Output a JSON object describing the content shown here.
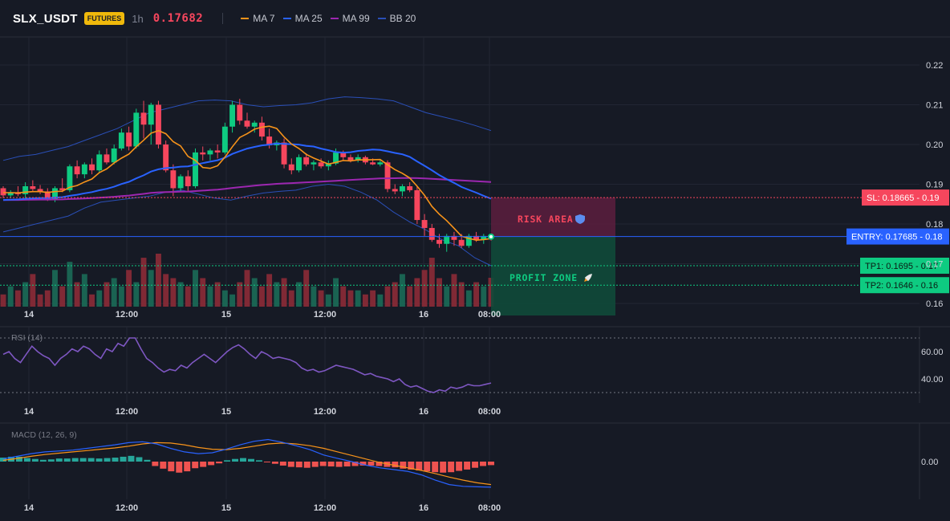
{
  "header": {
    "symbol": "SLX_USDT",
    "badge": "FUTURES",
    "timeframe": "1h",
    "price": "0.17682"
  },
  "legend": [
    {
      "label": "MA 7",
      "color": "#f7931a"
    },
    {
      "label": "MA 25",
      "color": "#2962ff"
    },
    {
      "label": "MA 99",
      "color": "#9c27b0"
    },
    {
      "label": "BB 20",
      "color": "#2a4fb7"
    }
  ],
  "colors": {
    "up": "#0ecb81",
    "down": "#f6465d",
    "background": "#161a25",
    "grid": "#222633",
    "entry": "#2962ff",
    "stop": "#f6465d",
    "target": "#0ecb81"
  },
  "zones": {
    "risk_label": "RISK AREA",
    "risk_icon": "shield-icon",
    "profit_label": "PROFIT ZONE",
    "profit_icon": "rocket-icon"
  },
  "levels": {
    "sl": {
      "label": "SL: 0.18665",
      "value": 0.18665,
      "axis": "0.19"
    },
    "entry": {
      "label": "ENTRY: 0.17685",
      "value": 0.17685,
      "axis": "0.18"
    },
    "tp1": {
      "label": "TP1: 0.1695",
      "value": 0.1695,
      "axis": "0.17"
    },
    "tp2": {
      "label": "TP2: 0.1646",
      "value": 0.1646,
      "axis": "0.16"
    }
  },
  "chart_data": [
    {
      "type": "candlestick",
      "x_ticks": [
        "14",
        "12:00",
        "15",
        "12:00",
        "16",
        "08:00"
      ],
      "y_ticks": [
        "0.16",
        "0.17",
        "0.18",
        "0.19",
        "0.20",
        "0.21",
        "0.22"
      ],
      "ylim": [
        0.16,
        0.225
      ],
      "candles": [
        [
          0.189,
          0.1895,
          0.1865,
          0.1872
        ],
        [
          0.1872,
          0.1885,
          0.1865,
          0.188
        ],
        [
          0.188,
          0.1895,
          0.187,
          0.1875
        ],
        [
          0.1875,
          0.1905,
          0.186,
          0.1895
        ],
        [
          0.1895,
          0.191,
          0.188,
          0.1888
        ],
        [
          0.1888,
          0.1898,
          0.1875,
          0.1882
        ],
        [
          0.1882,
          0.189,
          0.1858,
          0.1862
        ],
        [
          0.1862,
          0.1895,
          0.1855,
          0.189
        ],
        [
          0.189,
          0.1915,
          0.188,
          0.1885
        ],
        [
          0.1885,
          0.195,
          0.188,
          0.1945
        ],
        [
          0.1945,
          0.196,
          0.1915,
          0.1925
        ],
        [
          0.1925,
          0.1955,
          0.1915,
          0.195
        ],
        [
          0.195,
          0.1965,
          0.1925,
          0.1935
        ],
        [
          0.1935,
          0.1985,
          0.193,
          0.1975
        ],
        [
          0.1975,
          0.199,
          0.195,
          0.1955
        ],
        [
          0.1955,
          0.2,
          0.195,
          0.199
        ],
        [
          0.199,
          0.204,
          0.1985,
          0.203
        ],
        [
          0.203,
          0.2045,
          0.1985,
          0.1995
        ],
        [
          0.1995,
          0.209,
          0.199,
          0.208
        ],
        [
          0.208,
          0.211,
          0.2015,
          0.205
        ],
        [
          0.205,
          0.2105,
          0.2,
          0.21
        ],
        [
          0.21,
          0.211,
          0.199,
          0.2
        ],
        [
          0.2,
          0.201,
          0.193,
          0.1935
        ],
        [
          0.1935,
          0.195,
          0.187,
          0.189
        ],
        [
          0.189,
          0.1925,
          0.188,
          0.192
        ],
        [
          0.192,
          0.1935,
          0.188,
          0.1895
        ],
        [
          0.1895,
          0.199,
          0.189,
          0.198
        ],
        [
          0.198,
          0.1995,
          0.196,
          0.1975
        ],
        [
          0.1975,
          0.199,
          0.196,
          0.1985
        ],
        [
          0.1985,
          0.2,
          0.1965,
          0.198
        ],
        [
          0.198,
          0.2055,
          0.1975,
          0.2045
        ],
        [
          0.2045,
          0.211,
          0.203,
          0.21
        ],
        [
          0.21,
          0.2115,
          0.205,
          0.206
        ],
        [
          0.206,
          0.208,
          0.204,
          0.2045
        ],
        [
          0.2045,
          0.206,
          0.203,
          0.2055
        ],
        [
          0.2055,
          0.207,
          0.201,
          0.202
        ],
        [
          0.202,
          0.204,
          0.199,
          0.1998
        ],
        [
          0.1998,
          0.201,
          0.1985,
          0.2005
        ],
        [
          0.2005,
          0.2015,
          0.194,
          0.195
        ],
        [
          0.195,
          0.1965,
          0.1925,
          0.1935
        ],
        [
          0.1935,
          0.1975,
          0.193,
          0.1968
        ],
        [
          0.1968,
          0.1978,
          0.1945,
          0.195
        ],
        [
          0.195,
          0.196,
          0.1935,
          0.1955
        ],
        [
          0.1955,
          0.1965,
          0.194,
          0.1945
        ],
        [
          0.1945,
          0.196,
          0.1935,
          0.1952
        ],
        [
          0.1952,
          0.199,
          0.1948,
          0.198
        ],
        [
          0.198,
          0.1985,
          0.196,
          0.1968
        ],
        [
          0.1968,
          0.1975,
          0.1955,
          0.196
        ],
        [
          0.196,
          0.1975,
          0.1955,
          0.1968
        ],
        [
          0.1968,
          0.1972,
          0.195,
          0.1955
        ],
        [
          0.1955,
          0.1965,
          0.1948,
          0.195
        ],
        [
          0.195,
          0.196,
          0.1945,
          0.1955
        ],
        [
          0.1955,
          0.196,
          0.188,
          0.1888
        ],
        [
          0.1888,
          0.19,
          0.1875,
          0.1882
        ],
        [
          0.1882,
          0.19,
          0.187,
          0.1895
        ],
        [
          0.1895,
          0.1905,
          0.188,
          0.1885
        ],
        [
          0.1885,
          0.1895,
          0.18,
          0.181
        ],
        [
          0.181,
          0.1825,
          0.177,
          0.179
        ],
        [
          0.179,
          0.18,
          0.1755,
          0.176
        ],
        [
          0.176,
          0.1775,
          0.174,
          0.175
        ],
        [
          0.175,
          0.1775,
          0.173,
          0.177
        ],
        [
          0.177,
          0.178,
          0.1745,
          0.176
        ],
        [
          0.176,
          0.1775,
          0.174,
          0.1745
        ],
        [
          0.1745,
          0.1775,
          0.174,
          0.177
        ],
        [
          0.177,
          0.178,
          0.1755,
          0.176
        ],
        [
          0.176,
          0.1775,
          0.175,
          0.177
        ],
        [
          0.177,
          0.1775,
          0.1758,
          0.1768
        ]
      ],
      "volumes": [
        3,
        5,
        4,
        6,
        8,
        3,
        4,
        9,
        5,
        11,
        6,
        8,
        3,
        4,
        6,
        7,
        5,
        9,
        6,
        12,
        9,
        13,
        8,
        7,
        6,
        5,
        9,
        7,
        5,
        6,
        4,
        3,
        6,
        9,
        7,
        5,
        8,
        6,
        7,
        4,
        6,
        9,
        5,
        4,
        3,
        7,
        5,
        4,
        4,
        3,
        4,
        3,
        5,
        6,
        8,
        5,
        7,
        9,
        12,
        7,
        5,
        8,
        6,
        4,
        6,
        5,
        18
      ],
      "bollinger_upper": [
        0.196,
        0.197,
        0.1975,
        0.1985,
        0.1995,
        0.201,
        0.2025,
        0.204,
        0.206,
        0.208,
        0.209,
        0.21,
        0.211,
        0.2112,
        0.211,
        0.21,
        0.2095,
        0.2098,
        0.21,
        0.2105,
        0.2115,
        0.212,
        0.2118,
        0.2115,
        0.211,
        0.2095,
        0.208,
        0.207,
        0.206,
        0.2048,
        0.2035
      ],
      "bollinger_lower": [
        0.178,
        0.179,
        0.18,
        0.181,
        0.182,
        0.184,
        0.1855,
        0.186,
        0.1865,
        0.187,
        0.188,
        0.1885,
        0.1875,
        0.1865,
        0.186,
        0.187,
        0.1878,
        0.1882,
        0.1885,
        0.1895,
        0.19,
        0.1895,
        0.188,
        0.186,
        0.183,
        0.1805,
        0.1785,
        0.176,
        0.1745,
        0.1715,
        0.1695
      ]
    },
    {
      "type": "line",
      "title": "RSI (14)",
      "y_ticks": [
        "60.00",
        "40.00"
      ],
      "ylim": [
        25,
        75
      ],
      "guides": [
        70,
        30
      ],
      "values": [
        58,
        60,
        55,
        52,
        58,
        64,
        60,
        57,
        55,
        50,
        55,
        58,
        62,
        60,
        64,
        62,
        58,
        55,
        62,
        60,
        66,
        64,
        70,
        70,
        62,
        55,
        52,
        48,
        45,
        47,
        46,
        50,
        48,
        52,
        55,
        58,
        55,
        52,
        56,
        60,
        63,
        65,
        62,
        58,
        55,
        60,
        58,
        55,
        56,
        55,
        54,
        52,
        48,
        46,
        47,
        45,
        46,
        48,
        50,
        49,
        48,
        47,
        45,
        43,
        44,
        42,
        41,
        40,
        38,
        40,
        36,
        34,
        35,
        33,
        31,
        30,
        32,
        31,
        34,
        33,
        34,
        36,
        35,
        35,
        36,
        37
      ]
    },
    {
      "type": "bar",
      "title": "MACD (12, 26, 9)",
      "y_ticks": [
        "0.00"
      ],
      "ylim": [
        -0.006,
        0.007
      ],
      "histogram": [
        0.0009,
        0.0011,
        0.0011,
        0.0008,
        0.0006,
        0.0004,
        0.0005,
        0.0007,
        0.0007,
        0.0008,
        0.0008,
        0.0008,
        0.0007,
        0.0008,
        0.0009,
        0.0011,
        0.0013,
        0.001,
        0.0004,
        -0.001,
        -0.0016,
        -0.0022,
        -0.0025,
        -0.0022,
        -0.0015,
        -0.0012,
        -0.0008,
        -0.0004,
        0.0003,
        0.0006,
        0.0008,
        0.0006,
        0.0003,
        -0.0001,
        -0.0005,
        -0.0009,
        -0.0012,
        -0.0013,
        -0.0014,
        -0.0012,
        -0.001,
        -0.0011,
        -0.0012,
        -0.0011,
        -0.001,
        -0.0009,
        -0.0009,
        -0.001,
        -0.0012,
        -0.0013,
        -0.0016,
        -0.0018,
        -0.002,
        -0.0022,
        -0.0024,
        -0.0025,
        -0.0024,
        -0.0021,
        -0.0018,
        -0.0014,
        -0.001,
        -0.0008
      ],
      "macd": [
        0.0006,
        0.0012,
        0.0018,
        0.0022,
        0.0024,
        0.0026,
        0.003,
        0.0034,
        0.0038,
        0.0043,
        0.0045,
        0.004,
        0.003,
        0.0022,
        0.0018,
        0.002,
        0.0028,
        0.0038,
        0.0046,
        0.005,
        0.0044,
        0.0036,
        0.0027,
        0.0015,
        0.0007,
        0.0,
        -0.0008,
        -0.0014,
        -0.0018,
        -0.0022,
        -0.003,
        -0.0042,
        -0.0052,
        -0.0056,
        -0.0057,
        -0.0058
      ],
      "signal": [
        0.0003,
        0.0007,
        0.0012,
        0.0016,
        0.0019,
        0.0022,
        0.0025,
        0.0028,
        0.0031,
        0.0035,
        0.004,
        0.0043,
        0.0042,
        0.0038,
        0.0032,
        0.0028,
        0.0027,
        0.003,
        0.0035,
        0.004,
        0.0042,
        0.004,
        0.0036,
        0.003,
        0.0022,
        0.0014,
        0.0006,
        -0.0002,
        -0.0008,
        -0.0014,
        -0.002,
        -0.0027,
        -0.0035,
        -0.0042,
        -0.0048,
        -0.0052
      ]
    }
  ]
}
